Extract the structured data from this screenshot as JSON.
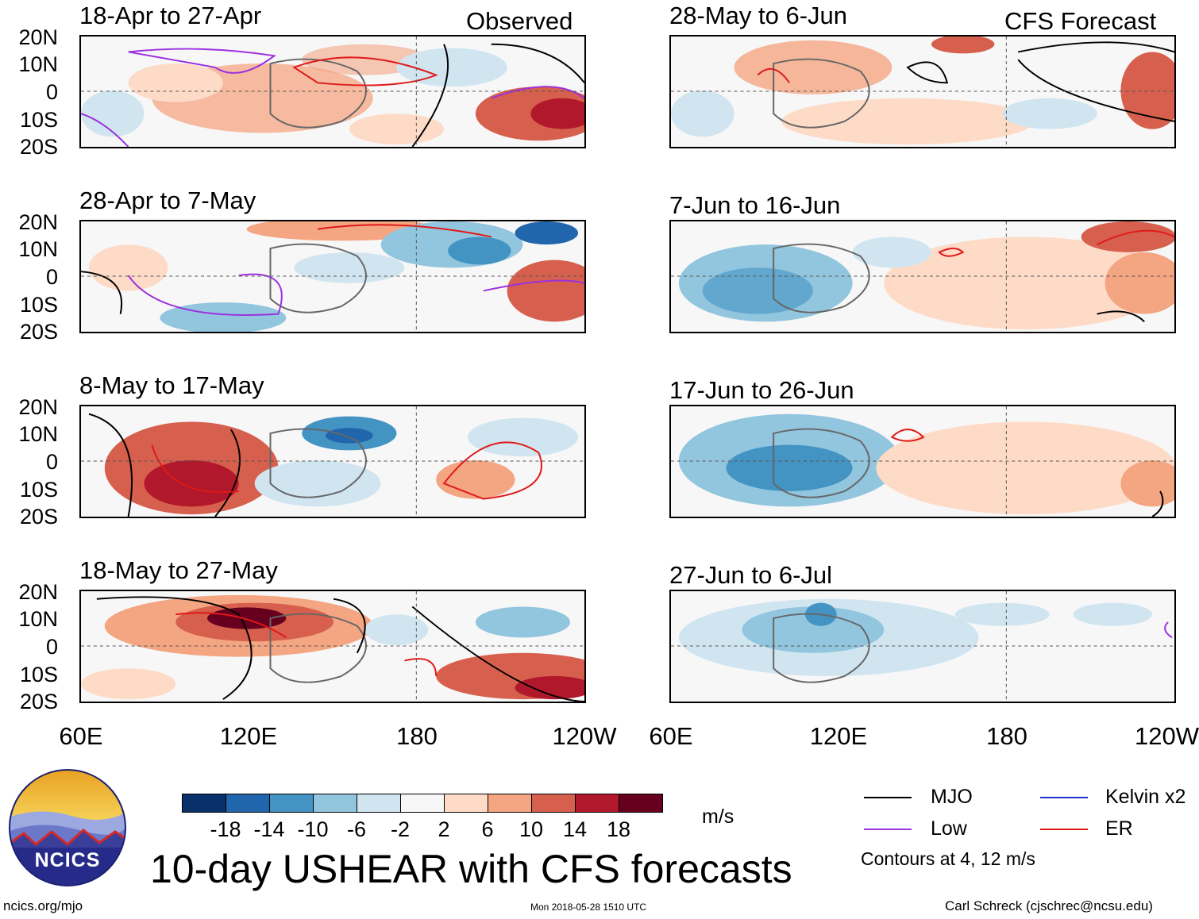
{
  "column_labels": {
    "observed": "Observed",
    "forecast": "CFS Forecast"
  },
  "panels": [
    {
      "title": "18-Apr to 27-Apr"
    },
    {
      "title": "28-May to 6-Jun"
    },
    {
      "title": "28-Apr to 7-May"
    },
    {
      "title": "7-Jun to 16-Jun"
    },
    {
      "title": "8-May to 17-May"
    },
    {
      "title": "17-Jun to 26-Jun"
    },
    {
      "title": "18-May to 27-May"
    },
    {
      "title": "27-Jun to 6-Jul"
    }
  ],
  "lat_ticks": [
    "20N",
    "10N",
    "0",
    "10S",
    "20S"
  ],
  "lon_ticks": [
    "60E",
    "120E",
    "180",
    "120W"
  ],
  "colorbar": {
    "colors": [
      "#08306b",
      "#2166ac",
      "#4393c3",
      "#92c5de",
      "#d1e5f0",
      "#f7f7f7",
      "#fddbc7",
      "#f4a582",
      "#d6604d",
      "#b2182b",
      "#67001f"
    ],
    "labels": [
      "-18",
      "-14",
      "-10",
      "-6",
      "-2",
      "2",
      "6",
      "10",
      "14",
      "18"
    ],
    "units": "m/s"
  },
  "legend": {
    "items": [
      {
        "label": "MJO",
        "color": "#000000"
      },
      {
        "label": "Kelvin x2",
        "color": "#1f2fd0"
      },
      {
        "label": "Low",
        "color": "#9b30e0"
      },
      {
        "label": "ER",
        "color": "#e01818"
      }
    ],
    "contours_note": "Contours at 4, 12 m/s"
  },
  "title": "10-day USHEAR with CFS forecasts",
  "logo": {
    "text": "NCICS"
  },
  "footer": {
    "url": "ncics.org/mjo",
    "timestamp": "Mon 2018-05-28 1510 UTC",
    "credit": "Carl Schreck (cjschrec@ncsu.edu)"
  }
}
